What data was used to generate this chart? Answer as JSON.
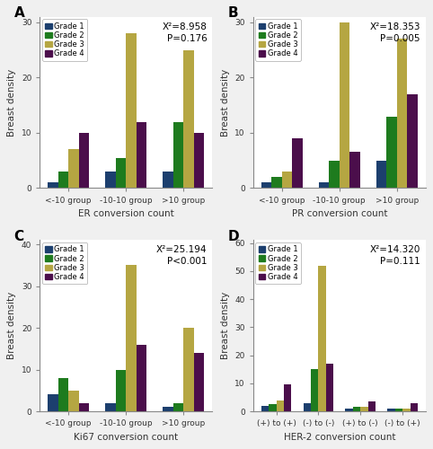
{
  "panels": [
    {
      "label": "A",
      "xlabel": "ER conversion count",
      "ylabel": "Breast density",
      "groups": [
        "<-10 group",
        "-10-10 group",
        ">10 group"
      ],
      "series": [
        {
          "name": "Grade 1",
          "color": "#1c3f6e",
          "values": [
            1,
            3,
            3
          ]
        },
        {
          "name": "Grade 2",
          "color": "#1e7b1e",
          "values": [
            3,
            5.5,
            12
          ]
        },
        {
          "name": "Grade 3",
          "color": "#b5a642",
          "values": [
            7,
            28,
            25
          ]
        },
        {
          "name": "Grade 4",
          "color": "#4b0e4b",
          "values": [
            10,
            12,
            10
          ]
        }
      ],
      "ylim": [
        0,
        31
      ],
      "yticks": [
        0,
        10,
        20,
        30
      ],
      "annotation": "X²=8.958\nP=0.176"
    },
    {
      "label": "B",
      "xlabel": "PR conversion count",
      "ylabel": "Breast density",
      "groups": [
        "<-10 group",
        "-10-10 group",
        ">10 group"
      ],
      "series": [
        {
          "name": "Grade 1",
          "color": "#1c3f6e",
          "values": [
            1,
            1,
            5
          ]
        },
        {
          "name": "Grade 2",
          "color": "#1e7b1e",
          "values": [
            2,
            5,
            13
          ]
        },
        {
          "name": "Grade 3",
          "color": "#b5a642",
          "values": [
            3,
            30,
            27
          ]
        },
        {
          "name": "Grade 4",
          "color": "#4b0e4b",
          "values": [
            9,
            6.5,
            17
          ]
        }
      ],
      "ylim": [
        0,
        31
      ],
      "yticks": [
        0,
        10,
        20,
        30
      ],
      "annotation": "X²=18.353\nP=0.005"
    },
    {
      "label": "C",
      "xlabel": "Ki67 conversion count",
      "ylabel": "Breast density",
      "groups": [
        "<-10 group",
        "-10-10 group",
        ">10 group"
      ],
      "series": [
        {
          "name": "Grade 1",
          "color": "#1c3f6e",
          "values": [
            4,
            2,
            1
          ]
        },
        {
          "name": "Grade 2",
          "color": "#1e7b1e",
          "values": [
            8,
            10,
            2
          ]
        },
        {
          "name": "Grade 3",
          "color": "#b5a642",
          "values": [
            5,
            35,
            20
          ]
        },
        {
          "name": "Grade 4",
          "color": "#4b0e4b",
          "values": [
            2,
            16,
            14
          ]
        }
      ],
      "ylim": [
        0,
        41
      ],
      "yticks": [
        0,
        10,
        20,
        30,
        40
      ],
      "annotation": "X²=25.194\nP<0.001"
    },
    {
      "label": "D",
      "xlabel": "HER-2 conversion count",
      "ylabel": "Breast density",
      "groups": [
        "(+) to (+)",
        "(-) to (-)",
        "(+) to (-)",
        "(-) to (+)"
      ],
      "series": [
        {
          "name": "Grade 1",
          "color": "#1c3f6e",
          "values": [
            2,
            3,
            1,
            1
          ]
        },
        {
          "name": "Grade 2",
          "color": "#1e7b1e",
          "values": [
            2.5,
            15,
            1.5,
            1
          ]
        },
        {
          "name": "Grade 3",
          "color": "#b5a642",
          "values": [
            4,
            52,
            1.5,
            1
          ]
        },
        {
          "name": "Grade 4",
          "color": "#4b0e4b",
          "values": [
            9.5,
            17,
            3.5,
            3
          ]
        }
      ],
      "ylim": [
        0,
        61
      ],
      "yticks": [
        0,
        10,
        20,
        30,
        40,
        50,
        60
      ],
      "annotation": "X²=14.320\nP=0.111"
    }
  ],
  "bar_width": 0.18,
  "bg_color": "#f0f0f0",
  "plot_bg_color": "#ffffff",
  "spine_color": "#888888",
  "annotation_fontsize": 7.5,
  "label_fontsize": 7.5,
  "tick_fontsize": 6.5,
  "legend_fontsize": 6.0,
  "panel_label_fontsize": 11
}
